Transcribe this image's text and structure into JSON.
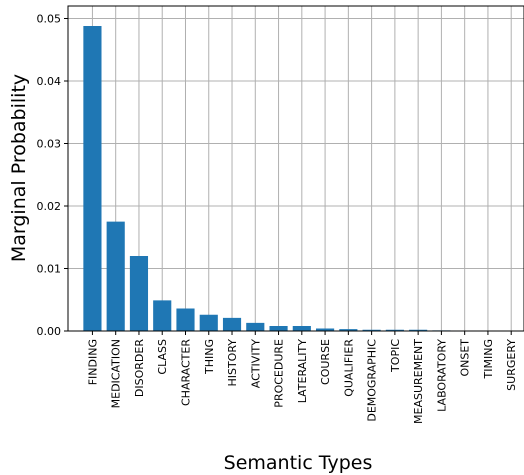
{
  "chart_data": {
    "type": "bar",
    "title": "",
    "xlabel": "Semantic Types",
    "ylabel": "Marginal Probability",
    "ylim": [
      0,
      0.052
    ],
    "yticks": [
      0.0,
      0.01,
      0.02,
      0.03,
      0.04,
      0.05
    ],
    "ytick_labels": [
      "0.00",
      "0.01",
      "0.02",
      "0.03",
      "0.04",
      "0.05"
    ],
    "grid": true,
    "bar_color": "#1f77b4",
    "categories": [
      "FINDING",
      "MEDICATION",
      "DISORDER",
      "CLASS",
      "CHARACTER",
      "THING",
      "HISTORY",
      "ACTIVITY",
      "PROCEDURE",
      "LATERALITY",
      "COURSE",
      "QUALIFIER",
      "DEMOGRAPHIC",
      "TOPIC",
      "MEASUREMENT",
      "LABORATORY",
      "ONSET",
      "TIMING",
      "SURGERY"
    ],
    "values": [
      0.0488,
      0.0175,
      0.012,
      0.0049,
      0.0036,
      0.0026,
      0.0021,
      0.0013,
      0.0008,
      0.0008,
      0.0004,
      0.0003,
      0.0002,
      0.0002,
      0.0002,
      0.0001,
      5e-05,
      3e-05,
      2e-05
    ]
  }
}
